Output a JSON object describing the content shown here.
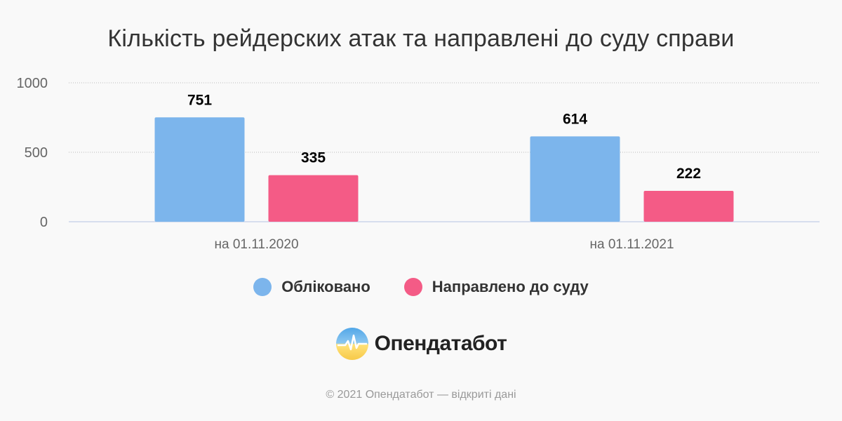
{
  "title": "Кількість рейдерских атак та направлені до суду справи",
  "chart_data": {
    "type": "bar",
    "categories": [
      "на 01.11.2020",
      "на 01.11.2021"
    ],
    "series": [
      {
        "name": "Обліковано",
        "values": [
          751,
          614
        ],
        "color": "#7cb5ec"
      },
      {
        "name": "Направлено до суду",
        "values": [
          335,
          222
        ],
        "color": "#f45b86"
      }
    ],
    "ylim": [
      0,
      1000
    ],
    "yticks": [
      0,
      500,
      1000
    ],
    "grid": true,
    "legend_position": "bottom-center"
  },
  "legend": {
    "series1": "Обліковано",
    "series2": "Направлено до суду"
  },
  "logo": {
    "text": "Опендатабот",
    "icon": "opendatabot-logo-icon"
  },
  "footer": "© 2021 Опендатабот — відкриті дані",
  "colors": {
    "background": "#f9f9f9",
    "series1": "#7cb5ec",
    "series2": "#f45b86"
  }
}
